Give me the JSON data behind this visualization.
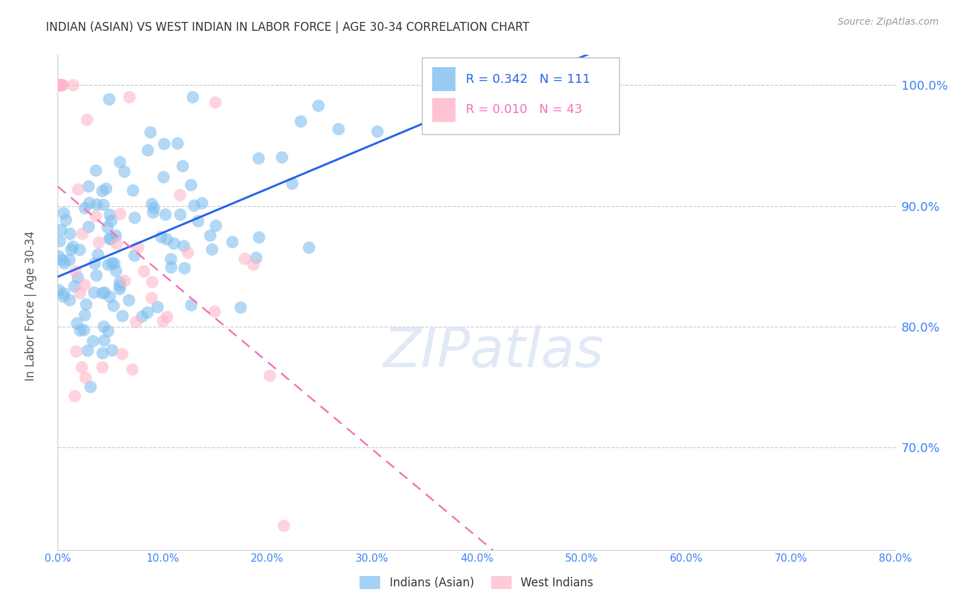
{
  "title": "INDIAN (ASIAN) VS WEST INDIAN IN LABOR FORCE | AGE 30-34 CORRELATION CHART",
  "source": "Source: ZipAtlas.com",
  "ylabel": "In Labor Force | Age 30-34",
  "watermark": "ZIPatlas",
  "legend_blue_r": "R = 0.342",
  "legend_blue_n": "N = 111",
  "legend_pink_r": "R = 0.010",
  "legend_pink_n": "N = 43",
  "legend_blue_label": "Indians (Asian)",
  "legend_pink_label": "West Indians",
  "xmin": 0.0,
  "xmax": 0.8,
  "ymin": 0.615,
  "ymax": 1.025,
  "yticks": [
    0.7,
    0.8,
    0.9,
    1.0
  ],
  "xticks": [
    0.0,
    0.1,
    0.2,
    0.3,
    0.4,
    0.5,
    0.6,
    0.7,
    0.8
  ],
  "blue_color": "#7fbfef",
  "pink_color": "#ffb6c8",
  "blue_line_color": "#2563eb",
  "pink_line_color": "#f472b6",
  "axis_color": "#3b82f6",
  "grid_color": "#cccccc",
  "blue_r": 0.342,
  "pink_r": 0.01,
  "blue_n": 111,
  "pink_n": 43,
  "dpi": 100,
  "figsize": [
    14.06,
    8.92
  ]
}
